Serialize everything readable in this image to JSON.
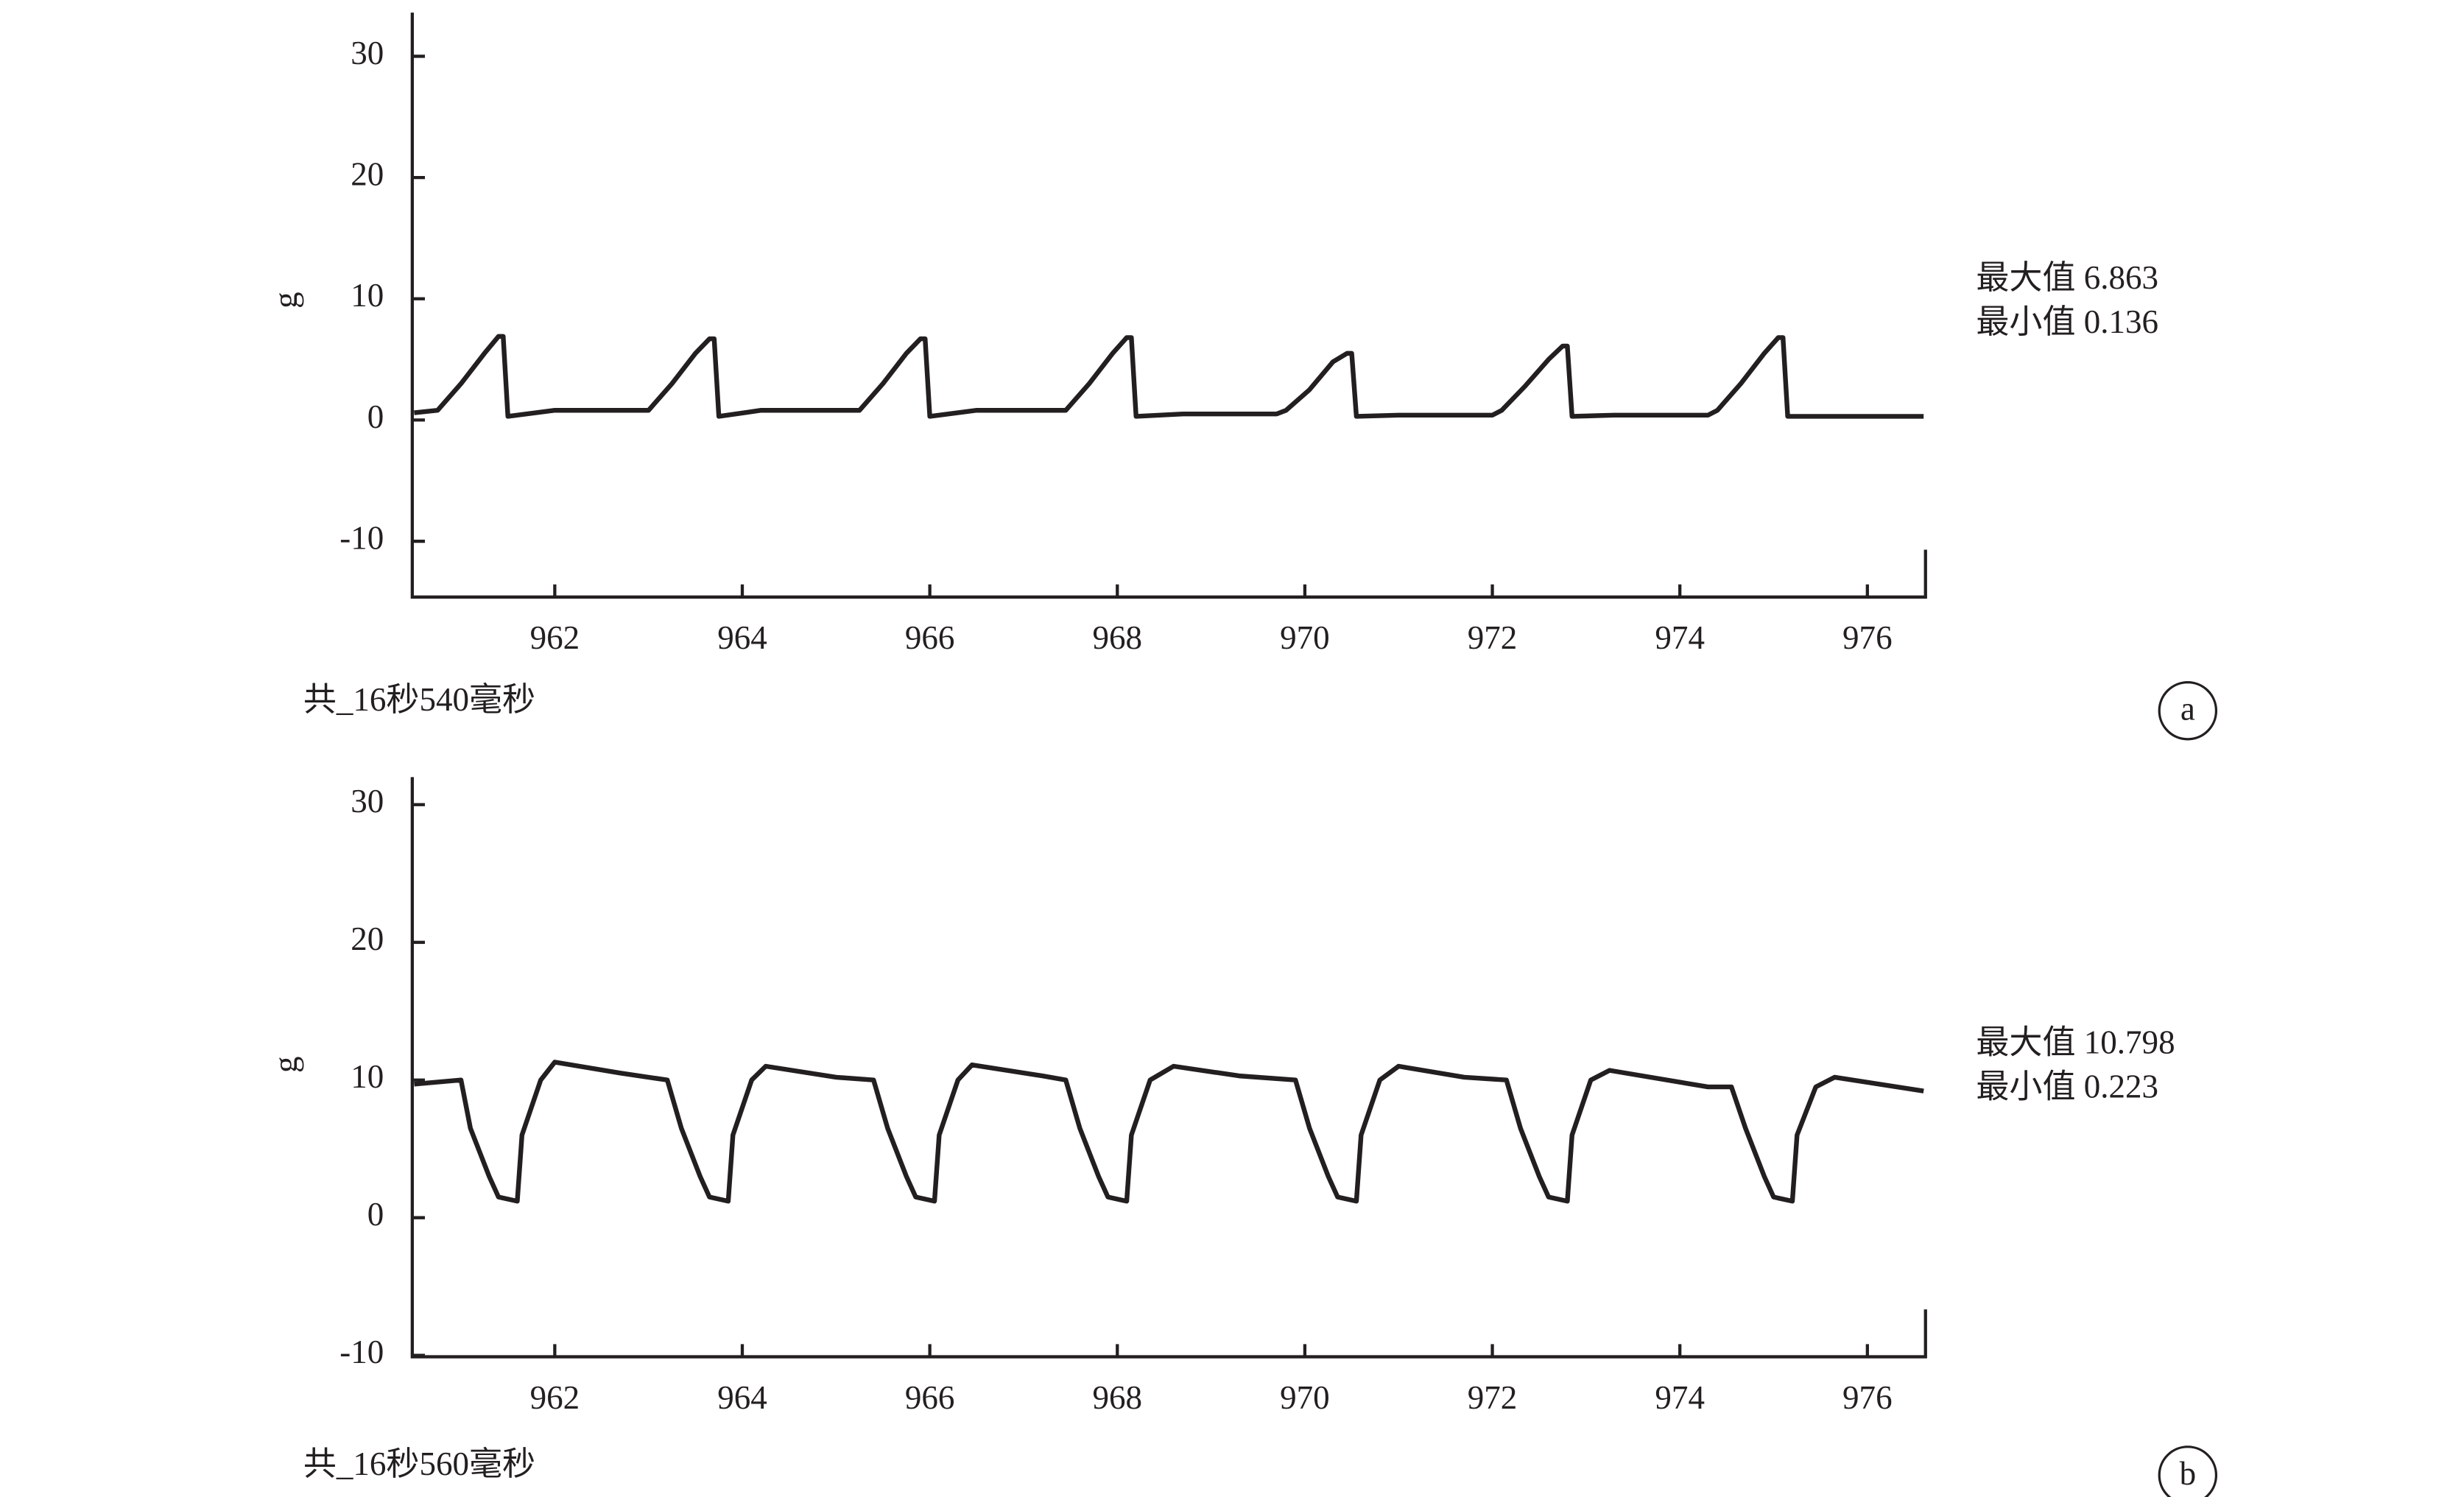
{
  "chart_data": [
    {
      "type": "line",
      "ylabel": "g",
      "caption": "共_16秒540毫秒",
      "panel_label": "a",
      "annotations": [
        "最大值 6.863",
        "最小值 0.136"
      ],
      "color": "#231f20",
      "xlim": [
        960.48,
        976.62
      ],
      "ylim": [
        -14.6,
        33.6
      ],
      "xticks": [
        962,
        964,
        966,
        968,
        970,
        972,
        974,
        976
      ],
      "yticks": [
        -10,
        0,
        10,
        20,
        30
      ],
      "x": [
        960.5,
        960.75,
        961.0,
        961.25,
        961.4,
        961.45,
        961.5,
        962.0,
        962.8,
        963.0,
        963.25,
        963.5,
        963.65,
        963.7,
        963.75,
        964.2,
        965.0,
        965.25,
        965.5,
        965.75,
        965.9,
        965.95,
        966.0,
        966.5,
        967.3,
        967.45,
        967.7,
        967.95,
        968.1,
        968.15,
        968.2,
        968.7,
        969.7,
        969.8,
        970.05,
        970.3,
        970.45,
        970.5,
        970.55,
        971.0,
        972.0,
        972.1,
        972.35,
        972.6,
        972.75,
        972.8,
        972.85,
        973.3,
        974.3,
        974.4,
        974.65,
        974.9,
        975.05,
        975.1,
        975.15,
        975.6,
        976.6
      ],
      "values": [
        0.6,
        0.8,
        3.0,
        5.5,
        6.9,
        6.9,
        0.3,
        0.8,
        0.8,
        0.8,
        3.0,
        5.5,
        6.7,
        6.7,
        0.3,
        0.8,
        0.8,
        0.8,
        3.0,
        5.5,
        6.7,
        6.7,
        0.3,
        0.8,
        0.8,
        0.8,
        3.0,
        5.5,
        6.8,
        6.8,
        0.3,
        0.5,
        0.5,
        0.8,
        2.5,
        4.8,
        5.5,
        5.5,
        0.3,
        0.4,
        0.4,
        0.8,
        2.8,
        5.0,
        6.1,
        6.1,
        0.3,
        0.4,
        0.4,
        0.8,
        3.0,
        5.5,
        6.8,
        6.8,
        0.3,
        0.3,
        0.3
      ]
    },
    {
      "type": "line",
      "ylabel": "g",
      "caption": "共_16秒560毫秒",
      "panel_label": "b",
      "annotations": [
        "最大值 10.798",
        "最小值 0.223"
      ],
      "color": "#231f20",
      "xlim": [
        960.48,
        976.62
      ],
      "ylim": [
        -10.1,
        32
      ],
      "xticks": [
        962,
        964,
        966,
        968,
        970,
        972,
        974,
        976
      ],
      "yticks": [
        -10,
        0,
        10,
        20,
        30
      ],
      "x": [
        960.5,
        961.0,
        961.1,
        961.3,
        961.4,
        961.6,
        961.65,
        961.85,
        962.0,
        962.7,
        963.2,
        963.35,
        963.55,
        963.65,
        963.85,
        963.9,
        964.1,
        964.25,
        965.0,
        965.4,
        965.55,
        965.75,
        965.85,
        966.05,
        966.1,
        966.3,
        966.45,
        967.2,
        967.45,
        967.6,
        967.8,
        967.9,
        968.1,
        968.15,
        968.35,
        968.6,
        969.3,
        969.9,
        970.05,
        970.25,
        970.35,
        970.55,
        970.6,
        970.8,
        971.0,
        971.7,
        972.15,
        972.3,
        972.5,
        972.6,
        972.8,
        972.85,
        973.05,
        973.25,
        974.3,
        974.55,
        974.7,
        974.9,
        975.0,
        975.2,
        975.25,
        975.45,
        975.65,
        976.6
      ],
      "values": [
        9.7,
        10,
        6.5,
        3,
        1.5,
        1.2,
        6,
        10,
        11.3,
        10.5,
        10,
        6.5,
        3,
        1.5,
        1.2,
        6,
        10,
        11,
        10.2,
        10,
        6.5,
        3,
        1.5,
        1.2,
        6,
        10,
        11.1,
        10.3,
        10,
        6.5,
        3,
        1.5,
        1.2,
        6,
        10,
        11,
        10.3,
        10,
        6.5,
        3,
        1.5,
        1.2,
        6,
        10,
        11,
        10.2,
        10,
        6.5,
        3,
        1.5,
        1.2,
        6,
        10,
        10.7,
        9.5,
        9.5,
        6.5,
        3,
        1.5,
        1.2,
        6,
        9.5,
        10.2,
        9.2
      ]
    }
  ]
}
